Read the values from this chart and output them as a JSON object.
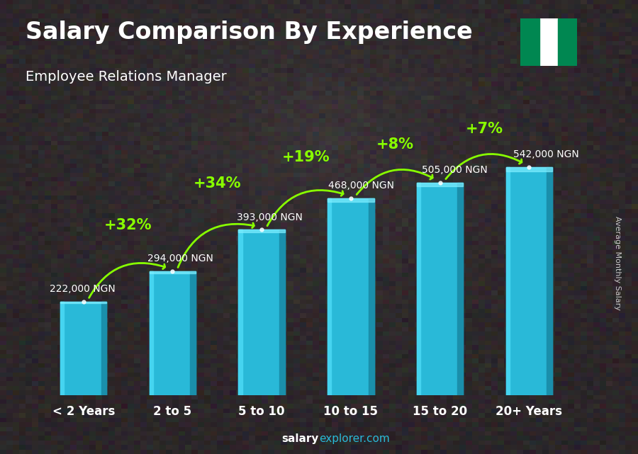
{
  "title": "Salary Comparison By Experience",
  "subtitle": "Employee Relations Manager",
  "categories": [
    "< 2 Years",
    "2 to 5",
    "5 to 10",
    "10 to 15",
    "15 to 20",
    "20+ Years"
  ],
  "values": [
    222000,
    294000,
    393000,
    468000,
    505000,
    542000
  ],
  "labels": [
    "222,000 NGN",
    "294,000 NGN",
    "393,000 NGN",
    "468,000 NGN",
    "505,000 NGN",
    "542,000 NGN"
  ],
  "pct_labels": [
    "+32%",
    "+34%",
    "+19%",
    "+8%",
    "+7%"
  ],
  "bar_color_main": "#29b9d8",
  "bar_color_light": "#45d4f0",
  "bar_color_dark": "#1a8fab",
  "bar_color_highlight": "#7eeeff",
  "bg_color": "#3a3030",
  "title_color": "#ffffff",
  "subtitle_color": "#ffffff",
  "label_color": "#ffffff",
  "pct_color": "#88ff00",
  "ylabel_text": "Average Monthly Salary",
  "footer_salary_color": "#ffffff",
  "footer_explorer_color": "#29b9d8",
  "nigeria_green": "#008751",
  "nigeria_white": "#ffffff",
  "ylim": [
    0,
    680000
  ],
  "bar_width": 0.52,
  "label_fontsize": 10,
  "pct_fontsize": 15,
  "title_fontsize": 24,
  "subtitle_fontsize": 14,
  "xtick_fontsize": 12
}
